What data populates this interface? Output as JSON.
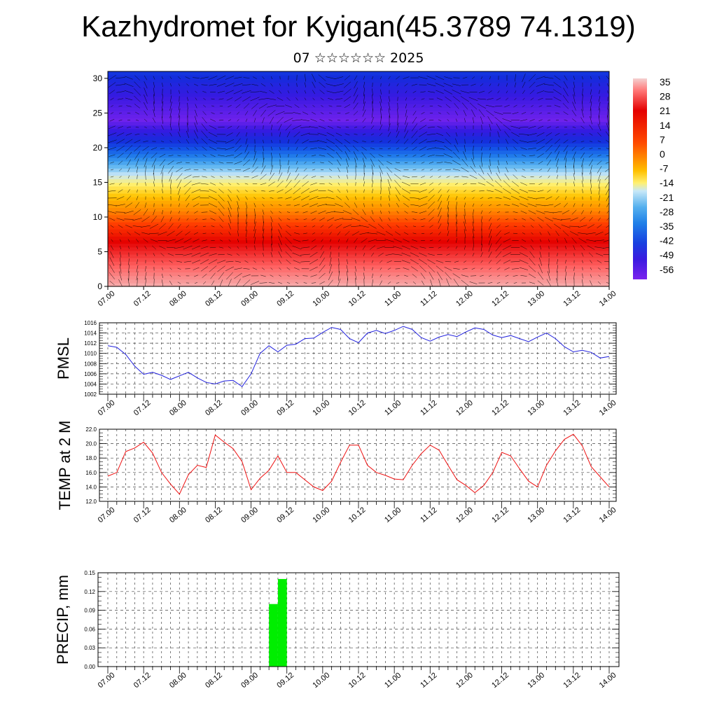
{
  "header": {
    "title": "Kazhydromet for Kyigan(45.3789 74.1319)",
    "subtitle": "07 ☆☆☆☆☆☆ 2025"
  },
  "time_labels": [
    "07.00",
    "07.12",
    "08.00",
    "08.12",
    "09.00",
    "09.12",
    "10.00",
    "10.12",
    "11.00",
    "11.12",
    "12.00",
    "12.12",
    "13.00",
    "13.12",
    "14.00"
  ],
  "colors": {
    "pmsl_line": "#2222dd",
    "temp_line": "#ee1111",
    "precip_bar": "#00ee00",
    "grid": "#444444"
  },
  "chart_data": [
    {
      "type": "heatmap",
      "title": "",
      "y_ticks": [
        0,
        5,
        10,
        15,
        20,
        25,
        30
      ],
      "ylim": [
        0,
        31
      ],
      "colorbar_labels": [
        35,
        28,
        21,
        14,
        7,
        0,
        -7,
        -14,
        -21,
        -28,
        -35,
        -42,
        -49,
        -56
      ],
      "overlay": "wind vectors",
      "temperature_by_level": {
        "levels": [
          0,
          3,
          6,
          9,
          12,
          15,
          18,
          21,
          24,
          27,
          31
        ],
        "values": [
          33,
          28,
          22,
          14,
          4,
          -8,
          -24,
          -42,
          -55,
          -50,
          -40
        ]
      }
    },
    {
      "type": "line",
      "ylabel": "PMSL",
      "ylim": [
        1002,
        1016
      ],
      "y_ticks": [
        1002,
        1004,
        1006,
        1008,
        1010,
        1012,
        1014,
        1016
      ],
      "x_step_hours": 3,
      "series": [
        {
          "values": [
            1011.5,
            1011.2,
            1009.8,
            1007.5,
            1005.9,
            1006.3,
            1005.7,
            1004.9,
            1005.6,
            1006.3,
            1005.2,
            1004.3,
            1004.0,
            1004.6,
            1004.7,
            1003.5,
            1006.0,
            1010.0,
            1011.5,
            1010.3,
            1011.6,
            1011.8,
            1012.9,
            1013.0,
            1014.1,
            1015.1,
            1014.7,
            1012.9,
            1012.1,
            1014.0,
            1014.5,
            1013.9,
            1014.5,
            1015.3,
            1014.7,
            1013.1,
            1012.4,
            1013.2,
            1013.7,
            1013.3,
            1014.2,
            1015.0,
            1014.7,
            1013.6,
            1013.1,
            1013.5,
            1012.9,
            1012.3,
            1013.2,
            1014.0,
            1012.9,
            1011.3,
            1010.3,
            1010.6,
            1010.2,
            1009.1,
            1009.4
          ]
        }
      ]
    },
    {
      "type": "line",
      "ylabel": "TEMP at 2 M",
      "ylim": [
        12.0,
        22.0
      ],
      "y_ticks": [
        "12.0",
        "14.0",
        "16.0",
        "18.0",
        "20.0",
        "22.0"
      ],
      "x_step_hours": 3,
      "series": [
        {
          "values": [
            15.5,
            16.0,
            18.9,
            19.4,
            20.2,
            18.7,
            16.0,
            14.4,
            13.0,
            15.7,
            17.0,
            16.7,
            21.2,
            20.2,
            19.3,
            17.5,
            13.6,
            15.2,
            16.3,
            18.3,
            16.0,
            16.0,
            15.0,
            14.0,
            13.5,
            14.8,
            17.4,
            19.8,
            19.8,
            17.0,
            16.0,
            15.6,
            15.1,
            15.0,
            17.0,
            18.6,
            19.8,
            19.1,
            17.0,
            15.0,
            14.2,
            13.2,
            14.2,
            16.0,
            18.8,
            18.3,
            16.5,
            14.8,
            14.0,
            17.0,
            19.0,
            20.6,
            21.3,
            19.7,
            16.8,
            15.4,
            14.0
          ]
        }
      ]
    },
    {
      "type": "bar",
      "ylabel": "PRECIP, mm",
      "ylim": [
        0,
        0.15
      ],
      "y_ticks": [
        "0.00",
        "0.03",
        "0.06",
        "0.09",
        "0.12",
        "0.15"
      ],
      "x": [
        "09.06",
        "09.09"
      ],
      "values": [
        0.1,
        0.14
      ]
    }
  ]
}
